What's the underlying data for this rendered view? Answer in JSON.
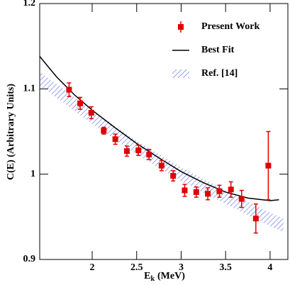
{
  "chart_data": {
    "type": "scatter",
    "xlabel": [
      "E",
      "k",
      "(MeV)"
    ],
    "ylabel": "C(E) (Arbitrary Units)",
    "xlim": [
      1.41,
      4.2
    ],
    "ylim": [
      0.9,
      1.2
    ],
    "xticks": [
      2,
      2.5,
      3,
      3.5,
      4
    ],
    "yticks": [
      0.9,
      1,
      1.1,
      1.2
    ],
    "legend": "upper right",
    "series": [
      {
        "name": "Present Work",
        "type": "errorbar",
        "color": "#e00000",
        "x": [
          1.74,
          1.865,
          1.99,
          2.13,
          2.26,
          2.39,
          2.52,
          2.64,
          2.78,
          2.91,
          3.04,
          3.17,
          3.3,
          3.43,
          3.56,
          3.68,
          3.84,
          3.98
        ],
        "values": [
          1.099,
          1.083,
          1.072,
          1.051,
          1.041,
          1.027,
          1.028,
          1.023,
          1.01,
          0.998,
          0.981,
          0.979,
          0.977,
          0.98,
          0.982,
          0.971,
          0.948,
          1.01
        ],
        "errors": [
          0.008,
          0.007,
          0.007,
          0.004,
          0.006,
          0.006,
          0.006,
          0.006,
          0.006,
          0.006,
          0.007,
          0.006,
          0.007,
          0.007,
          0.009,
          0.01,
          0.017,
          0.04
        ]
      },
      {
        "name": "Best Fit",
        "type": "line",
        "color": "#000000",
        "x": [
          1.41,
          1.6,
          1.8,
          2,
          2.25,
          2.5,
          2.75,
          3,
          3.25,
          3.5,
          3.75,
          4,
          4.1
        ],
        "values": [
          1.138,
          1.114,
          1.093,
          1.075,
          1.055,
          1.036,
          1.019,
          1.003,
          0.99,
          0.979,
          0.972,
          0.969,
          0.97
        ]
      },
      {
        "name": "Ref. [14]",
        "type": "band",
        "color": "#5566dd",
        "x": [
          1.41,
          2,
          2.5,
          3,
          3.5,
          4,
          4.15
        ],
        "upper": [
          1.12,
          1.075,
          1.039,
          1.008,
          0.981,
          0.955,
          0.948
        ],
        "lower": [
          1.104,
          1.059,
          1.023,
          0.992,
          0.965,
          0.939,
          0.932
        ]
      }
    ]
  }
}
